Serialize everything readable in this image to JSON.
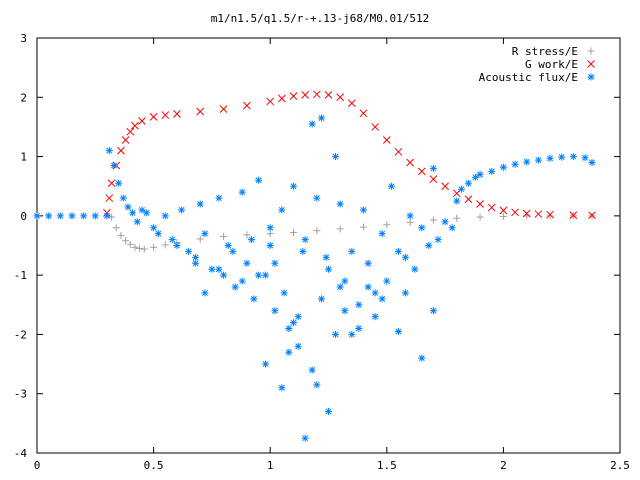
{
  "chart_data": {
    "type": "scatter",
    "title": "m1/n1.5/q1.5/r-+.13-j68/M0.01/512",
    "xlabel": "",
    "ylabel": "",
    "xlim": [
      0,
      2.5
    ],
    "ylim": [
      -4,
      3
    ],
    "x_ticks": [
      "0",
      "0.5",
      "1",
      "1.5",
      "2",
      "2.5"
    ],
    "y_ticks": [
      "3",
      "2",
      "1",
      "0",
      "-1",
      "-2",
      "-3",
      "-4"
    ],
    "grid": false,
    "legend_position": "top-right",
    "series": [
      {
        "name": "R stress/E",
        "marker": "+",
        "color": "#a0a0a0",
        "x": [
          0.32,
          0.34,
          0.36,
          0.38,
          0.4,
          0.42,
          0.44,
          0.46,
          0.5,
          0.55,
          0.6,
          0.7,
          0.8,
          0.9,
          1.0,
          1.1,
          1.2,
          1.3,
          1.4,
          1.5,
          1.6,
          1.7,
          1.8,
          1.9,
          2.0,
          2.1,
          2.2,
          2.3,
          2.38
        ],
        "y": [
          -0.02,
          -0.2,
          -0.33,
          -0.42,
          -0.48,
          -0.53,
          -0.55,
          -0.56,
          -0.53,
          -0.49,
          -0.45,
          -0.39,
          -0.35,
          -0.32,
          -0.3,
          -0.28,
          -0.25,
          -0.22,
          -0.19,
          -0.15,
          -0.11,
          -0.07,
          -0.04,
          -0.02,
          -0.01,
          0.0,
          0.0,
          0.0,
          0.0
        ]
      },
      {
        "name": "G work/E",
        "marker": "x",
        "color": "#ff0000",
        "x": [
          0.3,
          0.31,
          0.32,
          0.34,
          0.36,
          0.38,
          0.4,
          0.42,
          0.45,
          0.5,
          0.55,
          0.6,
          0.7,
          0.8,
          0.9,
          1.0,
          1.05,
          1.1,
          1.15,
          1.2,
          1.25,
          1.3,
          1.35,
          1.4,
          1.45,
          1.5,
          1.55,
          1.6,
          1.65,
          1.7,
          1.75,
          1.8,
          1.85,
          1.9,
          1.95,
          2.0,
          2.05,
          2.1,
          2.15,
          2.2,
          2.3,
          2.38
        ],
        "y": [
          0.05,
          0.3,
          0.55,
          0.85,
          1.1,
          1.28,
          1.42,
          1.52,
          1.6,
          1.67,
          1.7,
          1.72,
          1.76,
          1.8,
          1.86,
          1.93,
          1.98,
          2.02,
          2.04,
          2.05,
          2.04,
          2.0,
          1.9,
          1.73,
          1.5,
          1.28,
          1.08,
          0.9,
          0.75,
          0.62,
          0.5,
          0.38,
          0.28,
          0.2,
          0.14,
          0.09,
          0.06,
          0.04,
          0.03,
          0.02,
          0.01,
          0.01
        ]
      },
      {
        "name": "Acoustic flux/E",
        "marker": "*",
        "color": "#0080ff",
        "x": [
          0.0,
          0.05,
          0.1,
          0.15,
          0.2,
          0.25,
          0.3,
          0.31,
          0.33,
          0.35,
          0.37,
          0.39,
          0.41,
          0.43,
          0.45,
          0.47,
          0.5,
          0.52,
          0.55,
          0.58,
          0.6,
          0.62,
          0.65,
          0.68,
          0.7,
          0.72,
          0.75,
          0.78,
          0.8,
          0.82,
          0.85,
          0.88,
          0.9,
          0.93,
          0.95,
          0.98,
          1.0,
          1.02,
          1.05,
          1.08,
          1.1,
          1.12,
          1.15,
          1.18,
          1.2,
          1.22,
          1.25,
          1.28,
          1.3,
          1.32,
          1.35,
          1.38,
          1.4,
          1.42,
          1.45,
          1.48,
          1.5,
          1.52,
          1.55,
          1.58,
          1.6,
          1.62,
          1.65,
          1.68,
          1.7,
          1.72,
          1.75,
          1.78,
          1.8,
          1.82,
          1.85,
          1.88,
          1.9,
          1.95,
          2.0,
          2.05,
          2.1,
          2.15,
          2.2,
          2.25,
          2.3,
          2.35,
          2.38,
          0.98,
          1.05,
          1.1,
          1.15,
          1.2,
          1.25,
          1.3,
          1.12,
          1.08,
          1.35,
          1.45,
          1.55,
          1.65,
          1.7,
          0.95,
          1.0,
          1.18,
          1.22,
          1.28,
          1.02,
          1.14,
          1.06,
          1.24,
          1.32,
          1.38,
          1.42,
          1.48,
          1.58,
          0.78,
          0.88,
          0.92,
          0.72,
          0.68,
          0.84
        ],
        "y": [
          0.0,
          0.0,
          0.0,
          0.0,
          0.0,
          0.0,
          0.0,
          1.1,
          0.85,
          0.55,
          0.3,
          0.15,
          0.05,
          -0.1,
          0.1,
          0.05,
          -0.2,
          -0.3,
          0.0,
          -0.4,
          -0.5,
          0.1,
          -0.6,
          -0.7,
          0.2,
          -0.3,
          -0.9,
          0.3,
          -1.0,
          -0.5,
          -1.2,
          0.4,
          -0.8,
          -1.4,
          0.6,
          -1.0,
          -0.2,
          -1.6,
          0.1,
          -1.9,
          0.5,
          -2.2,
          -0.4,
          -2.6,
          0.3,
          -1.4,
          -0.9,
          -2.0,
          0.2,
          -1.1,
          -0.6,
          -1.5,
          0.1,
          -0.8,
          -1.7,
          -0.3,
          -1.1,
          0.5,
          -0.6,
          -1.3,
          0.0,
          -0.9,
          -0.2,
          -0.5,
          0.8,
          -0.4,
          -0.1,
          -0.2,
          0.25,
          0.45,
          0.55,
          0.65,
          0.7,
          0.75,
          0.82,
          0.87,
          0.91,
          0.94,
          0.97,
          0.99,
          1.0,
          0.98,
          0.9,
          -2.5,
          -2.9,
          -1.8,
          -3.75,
          -2.85,
          -3.3,
          -1.2,
          -1.7,
          -2.3,
          -2.0,
          -1.3,
          -1.95,
          -2.4,
          -1.6,
          -1.0,
          -0.5,
          1.55,
          1.65,
          1.0,
          -0.8,
          -0.6,
          -1.3,
          -0.7,
          -1.6,
          -1.9,
          -1.2,
          -1.4,
          -0.7,
          -0.9,
          -1.1,
          -0.4,
          -1.3,
          -0.8,
          -0.6
        ]
      }
    ]
  }
}
